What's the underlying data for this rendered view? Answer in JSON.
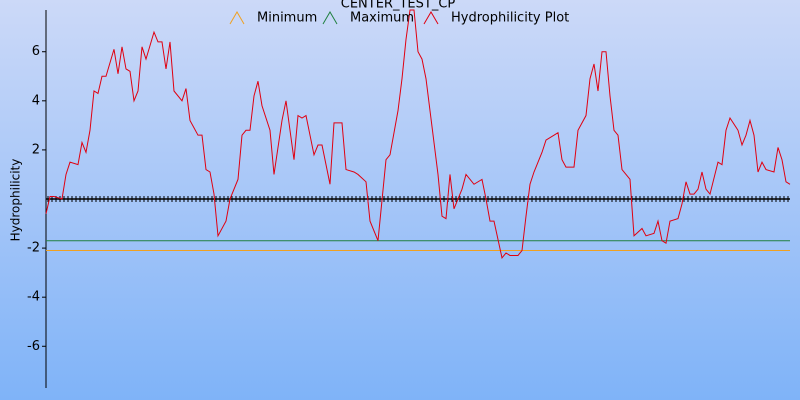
{
  "chart_data": {
    "type": "line",
    "title": "CENTER_TEST_CP",
    "y_label": "Hydrophilicity",
    "xlim": [
      0,
      186
    ],
    "ylim": [
      -7.7,
      7.7
    ],
    "yticks": [
      -6,
      -4,
      -2,
      2,
      4,
      6
    ],
    "series": [
      {
        "name": "Minimum",
        "color": "#f0a020",
        "x": [
          0,
          186
        ],
        "values": [
          -2.1,
          -2.1
        ]
      },
      {
        "name": "Maximum",
        "color": "#208040",
        "x": [
          0,
          186
        ],
        "values": [
          -1.7,
          -1.7
        ]
      },
      {
        "name": "Hydrophilicity Plot",
        "color": "#e00010",
        "x": [
          0,
          1,
          2,
          4,
          5,
          6,
          8,
          9,
          10,
          11,
          12,
          13,
          14,
          15,
          17,
          18,
          19,
          20,
          21,
          22,
          23,
          24,
          25,
          27,
          28,
          29,
          30,
          31,
          32,
          34,
          35,
          36,
          38,
          39,
          40,
          41,
          42,
          43,
          45,
          46,
          48,
          49,
          50,
          51,
          52,
          53,
          54,
          56,
          57,
          59,
          60,
          61,
          62,
          63,
          64,
          65,
          67,
          68,
          69,
          71,
          72,
          74,
          75,
          77,
          78,
          80,
          81,
          83,
          85,
          86,
          88,
          89,
          90,
          91,
          92,
          93,
          94,
          95,
          96,
          98,
          99,
          100,
          101,
          102,
          104,
          105,
          106,
          107,
          109,
          110,
          111,
          112,
          114,
          115,
          116,
          118,
          119,
          120,
          121,
          122,
          124,
          125,
          127,
          128,
          129,
          130,
          132,
          133,
          135,
          136,
          137,
          138,
          139,
          140,
          141,
          142,
          143,
          144,
          146,
          147,
          149,
          150,
          152,
          153,
          154,
          155,
          156,
          158,
          159,
          160,
          161,
          162,
          163,
          164,
          165,
          166,
          168,
          169,
          170,
          171,
          173,
          174,
          175,
          176,
          177,
          178,
          179,
          180,
          182,
          183,
          184,
          185,
          186
        ],
        "values": [
          -0.6,
          0.1,
          0.1,
          0.0,
          1.0,
          1.5,
          1.4,
          2.3,
          1.9,
          2.8,
          4.4,
          4.3,
          5.0,
          5.0,
          6.1,
          5.1,
          6.2,
          5.3,
          5.2,
          4.0,
          4.4,
          6.2,
          5.7,
          6.8,
          6.4,
          6.4,
          5.3,
          6.4,
          4.4,
          4.0,
          4.5,
          3.2,
          2.6,
          2.6,
          1.2,
          1.1,
          0.2,
          -1.5,
          -0.9,
          0.0,
          0.8,
          2.6,
          2.8,
          2.8,
          4.2,
          4.8,
          3.8,
          2.8,
          1.0,
          3.2,
          4.0,
          2.8,
          1.6,
          3.4,
          3.3,
          3.4,
          1.8,
          2.2,
          2.2,
          0.6,
          3.1,
          3.1,
          1.2,
          1.1,
          1.0,
          0.7,
          -0.9,
          -1.7,
          1.6,
          1.8,
          3.6,
          4.9,
          6.5,
          7.7,
          7.7,
          6.0,
          5.7,
          4.9,
          3.6,
          1.0,
          -0.7,
          -0.8,
          1.0,
          -0.4,
          0.4,
          1.0,
          0.8,
          0.6,
          0.8,
          0.0,
          -0.9,
          -0.9,
          -2.4,
          -2.2,
          -2.3,
          -2.3,
          -2.1,
          -0.7,
          0.6,
          1.1,
          1.9,
          2.4,
          2.6,
          2.7,
          1.6,
          1.3,
          1.3,
          2.8,
          3.4,
          4.9,
          5.5,
          4.4,
          6.0,
          6.0,
          4.2,
          2.8,
          2.6,
          1.2,
          0.8,
          -1.5,
          -1.2,
          -1.5,
          -1.4,
          -0.9,
          -1.7,
          -1.8,
          -0.9,
          -0.8,
          -0.2,
          0.7,
          0.2,
          0.2,
          0.4,
          1.1,
          0.4,
          0.2,
          1.5,
          1.4,
          2.8,
          3.3,
          2.8,
          2.2,
          2.6,
          3.2,
          2.6,
          1.1,
          1.5,
          1.2,
          1.1,
          2.1,
          1.6,
          0.7,
          0.6
        ]
      }
    ]
  }
}
